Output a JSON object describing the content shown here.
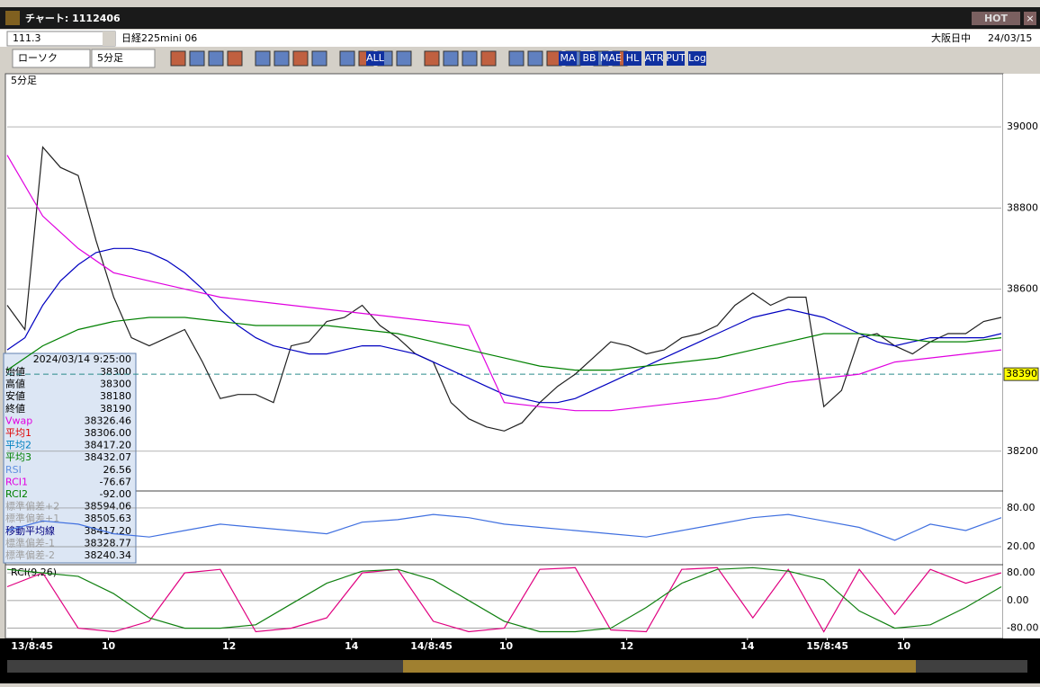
{
  "window": {
    "title": "チャート: 1112406",
    "hot_button": "HOT"
  },
  "toolbar1": {
    "code": "111.3",
    "symbol": "日経225mini 06",
    "market": "大阪日中",
    "date": "24/03/15"
  },
  "toolbar2": {
    "chart_style": "ローソク",
    "interval": "5分足",
    "icon_labels": [
      "ALL",
      "MA",
      "BB",
      "MAE",
      "HL",
      "ATR",
      "PUT",
      "Log"
    ]
  },
  "info_panel": {
    "datetime": "2024/03/14 9:25:00",
    "rows": [
      [
        "始値",
        "38300",
        "#000000"
      ],
      [
        "高値",
        "38300",
        "#000000"
      ],
      [
        "安値",
        "38180",
        "#000000"
      ],
      [
        "終値",
        "38190",
        "#000000"
      ],
      [
        "Vwap",
        "38326.46",
        "#e000e0"
      ],
      [
        "平均1",
        "38306.00",
        "#e00000"
      ],
      [
        "平均2",
        "38417.20",
        "#0080c0"
      ],
      [
        "平均3",
        "38432.07",
        "#008000"
      ],
      [
        "RSI",
        "26.56",
        "#6090e0"
      ],
      [
        "RCI1",
        "-76.67",
        "#e000e0"
      ],
      [
        "RCI2",
        "-92.00",
        "#008000"
      ],
      [
        "標準偏差+2",
        "38594.06",
        "#a0a0a0"
      ],
      [
        "標準偏差+1",
        "38505.63",
        "#a0a0a0"
      ],
      [
        "移動平均線",
        "38417.20",
        "#000080"
      ],
      [
        "標準偏差-1",
        "38328.77",
        "#a0a0a0"
      ],
      [
        "標準偏差-2",
        "38240.34",
        "#a0a0a0"
      ]
    ]
  },
  "chart_data": [
    {
      "type": "line",
      "title": "5分足",
      "ylim": [
        38102,
        39131
      ],
      "yticks": [
        38200,
        38600,
        38800,
        39000
      ],
      "current_price": 38390,
      "current_color": "#ffff00",
      "xlim": [
        0,
        56
      ],
      "xticks": [
        {
          "value": 1.4,
          "label": "13/8:45"
        },
        {
          "value": 5.7,
          "label": "10"
        },
        {
          "value": 12.5,
          "label": "12"
        },
        {
          "value": 19.4,
          "label": "14"
        },
        {
          "value": 23.9,
          "label": "14/8:45"
        },
        {
          "value": 28.1,
          "label": "10"
        },
        {
          "value": 34.9,
          "label": "12"
        },
        {
          "value": 41.7,
          "label": "14"
        },
        {
          "value": 46.2,
          "label": "15/8:45"
        },
        {
          "value": 50.5,
          "label": "10"
        }
      ],
      "series": [
        {
          "color": "#202020",
          "x": [
            0,
            1,
            2,
            3,
            4,
            5,
            6,
            7,
            8,
            9,
            10,
            11,
            12,
            13,
            14,
            15,
            16,
            17,
            18,
            19,
            20,
            21,
            22,
            23,
            24,
            25,
            26,
            27,
            28,
            29,
            30,
            31,
            32,
            33,
            34,
            35,
            36,
            37,
            38,
            39,
            40,
            41,
            42,
            43,
            44,
            45,
            46,
            47,
            48,
            49,
            50,
            51,
            52,
            53,
            54,
            55,
            56
          ],
          "values": [
            38560,
            38500,
            38950,
            38900,
            38880,
            38720,
            38580,
            38480,
            38460,
            38480,
            38500,
            38420,
            38330,
            38340,
            38340,
            38320,
            38460,
            38470,
            38520,
            38530,
            38560,
            38510,
            38480,
            38440,
            38420,
            38320,
            38280,
            38260,
            38250,
            38270,
            38320,
            38360,
            38390,
            38430,
            38470,
            38460,
            38440,
            38450,
            38480,
            38490,
            38510,
            38560,
            38590,
            38560,
            38580,
            38580,
            38310,
            38350,
            38480,
            38490,
            38460,
            38440,
            38470,
            38490,
            38490,
            38520,
            38530
          ]
        },
        {
          "color": "#0000c0",
          "x": [
            0,
            1,
            2,
            3,
            4,
            5,
            6,
            7,
            8,
            9,
            10,
            11,
            12,
            13,
            14,
            15,
            16,
            17,
            18,
            19,
            20,
            21,
            22,
            23,
            24,
            25,
            26,
            27,
            28,
            29,
            30,
            31,
            32,
            33,
            34,
            35,
            36,
            37,
            38,
            39,
            40,
            41,
            42,
            43,
            44,
            45,
            46,
            47,
            48,
            49,
            50,
            51,
            52,
            53,
            54,
            55,
            56
          ],
          "values": [
            38450,
            38480,
            38560,
            38620,
            38660,
            38690,
            38700,
            38700,
            38690,
            38670,
            38640,
            38600,
            38550,
            38510,
            38480,
            38460,
            38450,
            38440,
            38440,
            38450,
            38460,
            38460,
            38450,
            38440,
            38420,
            38400,
            38380,
            38360,
            38340,
            38330,
            38320,
            38320,
            38330,
            38350,
            38370,
            38390,
            38410,
            38430,
            38450,
            38470,
            38490,
            38510,
            38530,
            38540,
            38550,
            38540,
            38530,
            38510,
            38490,
            38470,
            38460,
            38470,
            38480,
            38480,
            38480,
            38480,
            38490
          ]
        },
        {
          "color": "#e000e0",
          "x": [
            0,
            2,
            4,
            6,
            8,
            10,
            12,
            14,
            16,
            18,
            20,
            22,
            24,
            26,
            28,
            30,
            32,
            34,
            36,
            38,
            40,
            42,
            44,
            46,
            48,
            50,
            52,
            54,
            56
          ],
          "values": [
            38930,
            38780,
            38700,
            38640,
            38620,
            38600,
            38580,
            38570,
            38560,
            38550,
            38540,
            38530,
            38520,
            38510,
            38320,
            38310,
            38300,
            38300,
            38310,
            38320,
            38330,
            38350,
            38370,
            38380,
            38390,
            38420,
            38430,
            38440,
            38450
          ]
        },
        {
          "color": "#008000",
          "x": [
            0,
            2,
            4,
            6,
            8,
            10,
            12,
            14,
            16,
            18,
            20,
            22,
            24,
            26,
            28,
            30,
            32,
            34,
            36,
            38,
            40,
            42,
            44,
            46,
            48,
            50,
            52,
            54,
            56
          ],
          "values": [
            38400,
            38460,
            38500,
            38520,
            38530,
            38530,
            38520,
            38510,
            38510,
            38510,
            38500,
            38490,
            38470,
            38450,
            38430,
            38410,
            38400,
            38400,
            38410,
            38420,
            38430,
            38450,
            38470,
            38490,
            38490,
            38480,
            38470,
            38470,
            38480
          ]
        }
      ]
    },
    {
      "type": "line",
      "ylim": [
        -6.5,
        105
      ],
      "xlim": [
        0,
        56
      ],
      "yticks": [
        {
          "value": 80,
          "label": "80.00"
        },
        {
          "value": 20,
          "label": "20.00"
        }
      ],
      "series": [
        {
          "color": "#4070e0",
          "x": [
            0,
            2,
            4,
            6,
            8,
            10,
            12,
            14,
            16,
            18,
            20,
            22,
            24,
            26,
            28,
            30,
            32,
            34,
            36,
            38,
            40,
            42,
            44,
            46,
            48,
            50,
            52,
            54,
            56
          ],
          "values": [
            45,
            60,
            55,
            40,
            35,
            45,
            55,
            50,
            45,
            40,
            58,
            62,
            70,
            65,
            55,
            50,
            45,
            40,
            35,
            45,
            55,
            65,
            70,
            60,
            50,
            30,
            55,
            45,
            65
          ]
        }
      ]
    },
    {
      "type": "line",
      "title": "RCI(9,26)",
      "ylim": [
        -107,
        101
      ],
      "xlim": [
        0,
        56
      ],
      "yticks": [
        {
          "value": 80,
          "label": "80.00"
        },
        {
          "value": 0,
          "label": "0.00"
        },
        {
          "value": -80,
          "label": "-80.00"
        }
      ],
      "series": [
        {
          "color": "#e00080",
          "x": [
            0,
            2,
            4,
            6,
            8,
            10,
            12,
            14,
            16,
            18,
            20,
            22,
            24,
            26,
            28,
            30,
            32,
            34,
            36,
            38,
            40,
            42,
            44,
            46,
            48,
            50,
            52,
            54,
            56
          ],
          "values": [
            40,
            80,
            -80,
            -90,
            -60,
            80,
            90,
            -90,
            -80,
            -50,
            80,
            90,
            -60,
            -90,
            -80,
            90,
            95,
            -85,
            -90,
            90,
            95,
            -50,
            90,
            -90,
            90,
            -40,
            90,
            50,
            80
          ]
        },
        {
          "color": "#108010",
          "x": [
            0,
            2,
            4,
            6,
            8,
            10,
            12,
            14,
            16,
            18,
            20,
            22,
            24,
            26,
            28,
            30,
            32,
            34,
            36,
            38,
            40,
            42,
            44,
            46,
            48,
            50,
            52,
            54,
            56
          ],
          "values": [
            90,
            80,
            70,
            20,
            -50,
            -80,
            -80,
            -70,
            -10,
            50,
            85,
            90,
            60,
            0,
            -60,
            -90,
            -90,
            -80,
            -20,
            50,
            90,
            95,
            85,
            60,
            -30,
            -80,
            -70,
            -20,
            40
          ]
        }
      ]
    }
  ]
}
